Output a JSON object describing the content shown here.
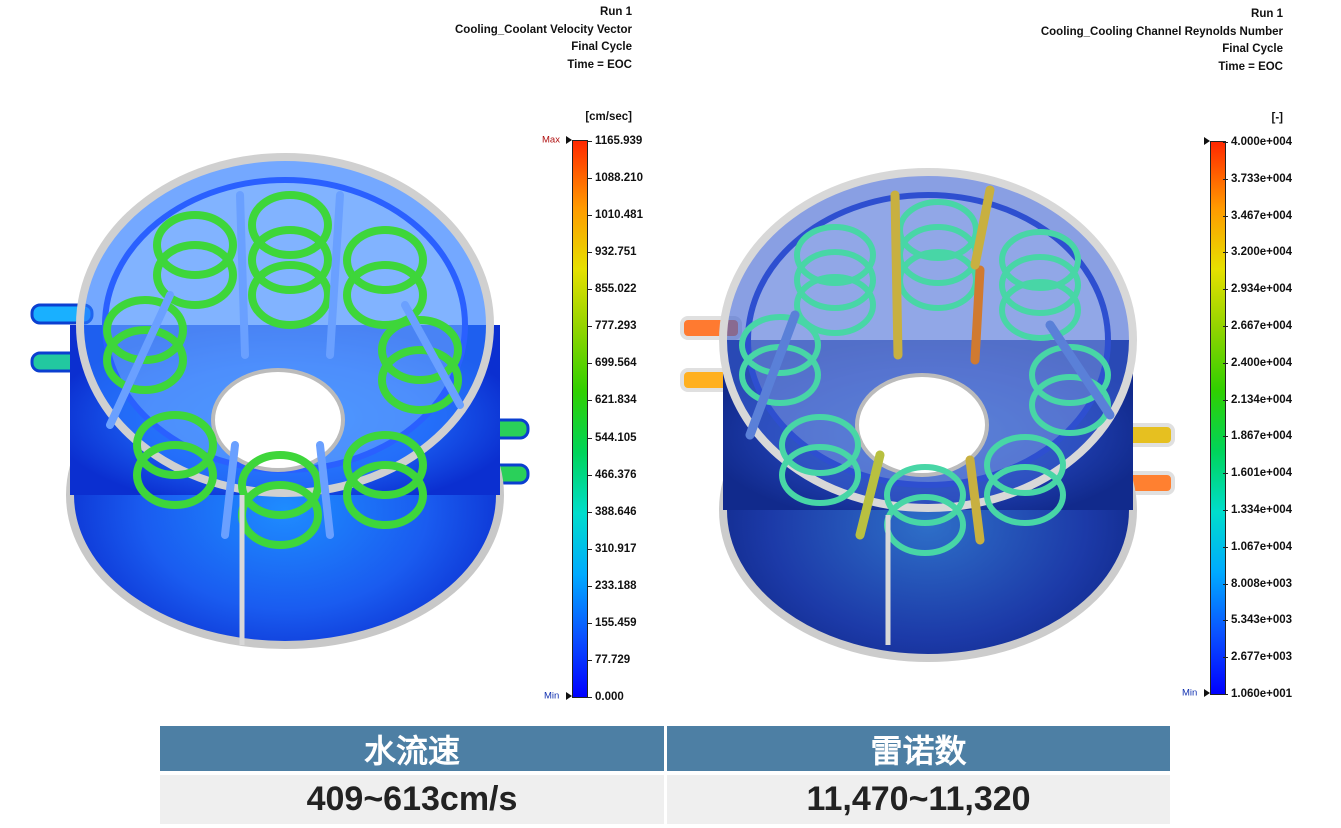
{
  "left": {
    "header": [
      "Run 1",
      "Cooling_Coolant Velocity Vector",
      "Final Cycle",
      "Time = EOC"
    ],
    "unit": "[cm/sec]",
    "max_label": "Max",
    "min_label": "Min",
    "ticks": [
      "1165.939",
      "1088.210",
      "1010.481",
      "932.751",
      "855.022",
      "777.293",
      "699.564",
      "621.834",
      "544.105",
      "466.376",
      "388.646",
      "310.917",
      "233.188",
      "155.459",
      "77.729",
      "0.000"
    ]
  },
  "right": {
    "header": [
      "Run 1",
      "Cooling_Cooling Channel Reynolds Number",
      "Final Cycle",
      "Time = EOC"
    ],
    "unit": "[-]",
    "min_label": "Min",
    "ticks": [
      "4.000e+004",
      "3.733e+004",
      "3.467e+004",
      "3.200e+004",
      "2.934e+004",
      "2.667e+004",
      "2.400e+004",
      "2.134e+004",
      "1.867e+004",
      "1.601e+004",
      "1.334e+004",
      "1.067e+004",
      "8.008e+003",
      "5.343e+003",
      "2.677e+003",
      "1.060e+001"
    ]
  },
  "table": {
    "headers": [
      "水流速",
      "雷诺数"
    ],
    "values": [
      "409~613cm/s",
      "11,470~11,320"
    ]
  },
  "colors": {
    "table_header": "#4d7fa4",
    "table_cell": "#efefef"
  }
}
